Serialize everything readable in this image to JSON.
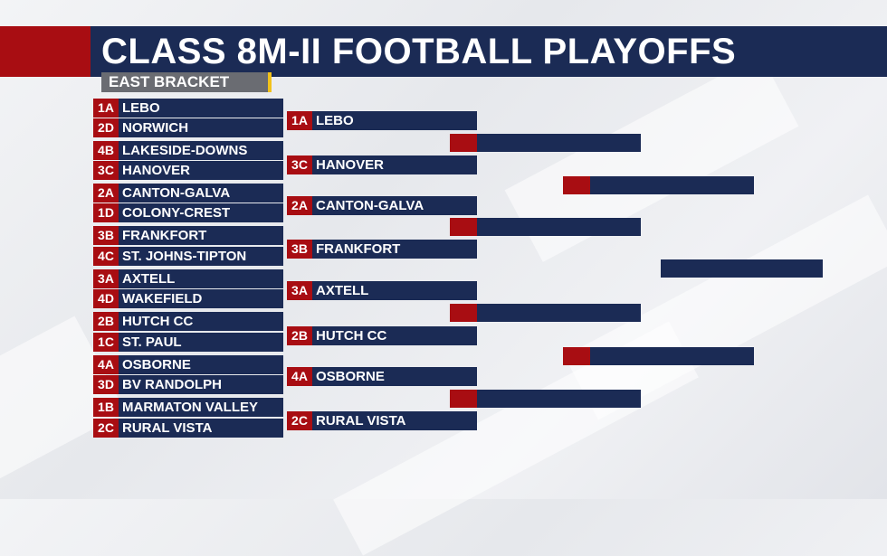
{
  "header": {
    "title": "CLASS 8M-II FOOTBALL PLAYOFFS",
    "bracket": "EAST BRACKET"
  },
  "round1": [
    {
      "seed": "1A",
      "name": "LEBO"
    },
    {
      "seed": "2D",
      "name": "NORWICH"
    },
    {
      "seed": "4B",
      "name": "LAKESIDE-DOWNS"
    },
    {
      "seed": "3C",
      "name": "HANOVER"
    },
    {
      "seed": "2A",
      "name": "CANTON-GALVA"
    },
    {
      "seed": "1D",
      "name": "COLONY-CREST"
    },
    {
      "seed": "3B",
      "name": "FRANKFORT"
    },
    {
      "seed": "4C",
      "name": "ST. JOHNS-TIPTON"
    },
    {
      "seed": "3A",
      "name": "AXTELL"
    },
    {
      "seed": "4D",
      "name": "WAKEFIELD"
    },
    {
      "seed": "2B",
      "name": "HUTCH CC"
    },
    {
      "seed": "1C",
      "name": "ST. PAUL"
    },
    {
      "seed": "4A",
      "name": "OSBORNE"
    },
    {
      "seed": "3D",
      "name": "BV RANDOLPH"
    },
    {
      "seed": "1B",
      "name": "MARMATON VALLEY"
    },
    {
      "seed": "2C",
      "name": "RURAL VISTA"
    }
  ],
  "round2": [
    {
      "seed": "1A",
      "name": "LEBO"
    },
    {
      "seed": "3C",
      "name": "HANOVER"
    },
    {
      "seed": "2A",
      "name": "CANTON-GALVA"
    },
    {
      "seed": "3B",
      "name": "FRANKFORT"
    },
    {
      "seed": "3A",
      "name": "AXTELL"
    },
    {
      "seed": "2B",
      "name": "HUTCH CC"
    },
    {
      "seed": "4A",
      "name": "OSBORNE"
    },
    {
      "seed": "2C",
      "name": "RURAL VISTA"
    }
  ]
}
